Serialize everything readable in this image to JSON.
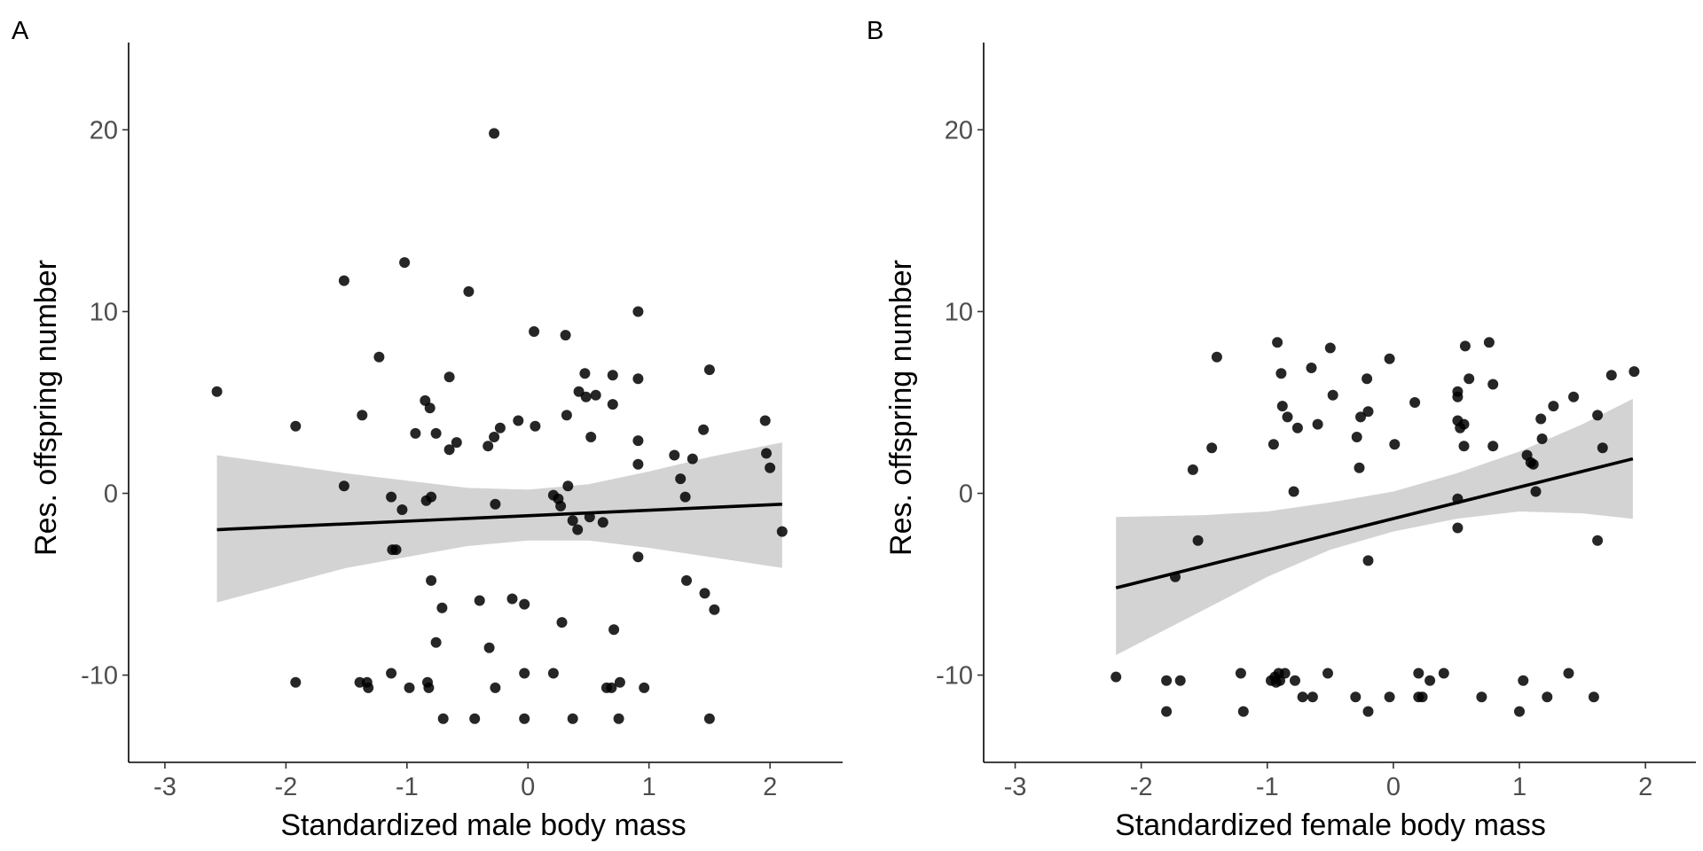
{
  "chart_data": [
    {
      "type": "scatter",
      "panel_label": "A",
      "xlabel": "Standardized male body mass",
      "ylabel": "Res. offspring number",
      "xlim": [
        -3.3,
        2.6
      ],
      "ylim": [
        -14.8,
        24.8
      ],
      "xticks": [
        -3,
        -2,
        -1,
        0,
        1,
        2
      ],
      "yticks": [
        -10,
        0,
        10,
        20
      ],
      "grid": false,
      "legend": "none",
      "point_color": "#000000",
      "band_color": "#d3d3d3",
      "fit": {
        "x0": -2.57,
        "y0": -2.0,
        "x1": 2.1,
        "y1": -0.6
      },
      "ci_band": [
        {
          "x": -2.57,
          "lower": -6.0,
          "upper": 2.1
        },
        {
          "x": -1.5,
          "lower": -4.1,
          "upper": 1.1
        },
        {
          "x": -0.5,
          "lower": -2.9,
          "upper": 0.3
        },
        {
          "x": 0.0,
          "lower": -2.6,
          "upper": 0.2
        },
        {
          "x": 0.5,
          "lower": -2.6,
          "upper": 0.5
        },
        {
          "x": 1.0,
          "lower": -3.0,
          "upper": 1.2
        },
        {
          "x": 1.5,
          "lower": -3.5,
          "upper": 2.0
        },
        {
          "x": 2.1,
          "lower": -4.1,
          "upper": 2.8
        }
      ],
      "points": [
        [
          -2.57,
          5.6
        ],
        [
          -1.92,
          3.7
        ],
        [
          -1.92,
          -10.4
        ],
        [
          -1.52,
          11.7
        ],
        [
          -1.52,
          0.4
        ],
        [
          -1.39,
          -10.4
        ],
        [
          -1.37,
          4.3
        ],
        [
          -1.33,
          -10.4
        ],
        [
          -1.32,
          -10.7
        ],
        [
          -1.23,
          7.5
        ],
        [
          -1.13,
          -0.2
        ],
        [
          -1.13,
          -9.9
        ],
        [
          -1.12,
          -3.1
        ],
        [
          -1.09,
          -3.1
        ],
        [
          -1.04,
          -0.9
        ],
        [
          -1.02,
          12.7
        ],
        [
          -0.98,
          -10.7
        ],
        [
          -0.93,
          3.3
        ],
        [
          -0.85,
          5.1
        ],
        [
          -0.84,
          -0.4
        ],
        [
          -0.83,
          -10.4
        ],
        [
          -0.82,
          -10.7
        ],
        [
          -0.81,
          4.7
        ],
        [
          -0.8,
          -0.2
        ],
        [
          -0.8,
          -4.8
        ],
        [
          -0.76,
          3.3
        ],
        [
          -0.76,
          -8.2
        ],
        [
          -0.71,
          -6.3
        ],
        [
          -0.7,
          -12.4
        ],
        [
          -0.65,
          6.4
        ],
        [
          -0.65,
          2.4
        ],
        [
          -0.59,
          2.8
        ],
        [
          -0.49,
          11.1
        ],
        [
          -0.44,
          -12.4
        ],
        [
          -0.4,
          -5.9
        ],
        [
          -0.33,
          2.6
        ],
        [
          -0.32,
          -8.5
        ],
        [
          -0.28,
          19.8
        ],
        [
          -0.28,
          3.1
        ],
        [
          -0.27,
          -0.6
        ],
        [
          -0.27,
          -10.7
        ],
        [
          -0.23,
          3.6
        ],
        [
          -0.13,
          -5.8
        ],
        [
          -0.08,
          4.0
        ],
        [
          -0.03,
          -6.1
        ],
        [
          -0.03,
          -9.9
        ],
        [
          -0.03,
          -12.4
        ],
        [
          0.05,
          8.9
        ],
        [
          0.06,
          3.7
        ],
        [
          0.21,
          -0.1
        ],
        [
          0.21,
          -9.9
        ],
        [
          0.25,
          -0.3
        ],
        [
          0.27,
          -0.7
        ],
        [
          0.28,
          -7.1
        ],
        [
          0.31,
          8.7
        ],
        [
          0.32,
          4.3
        ],
        [
          0.33,
          0.4
        ],
        [
          0.37,
          -1.5
        ],
        [
          0.37,
          -12.4
        ],
        [
          0.41,
          -2.0
        ],
        [
          0.42,
          5.6
        ],
        [
          0.47,
          6.6
        ],
        [
          0.48,
          5.3
        ],
        [
          0.51,
          -1.3
        ],
        [
          0.52,
          3.1
        ],
        [
          0.56,
          5.4
        ],
        [
          0.62,
          -1.6
        ],
        [
          0.65,
          -10.7
        ],
        [
          0.69,
          -10.7
        ],
        [
          0.7,
          6.5
        ],
        [
          0.7,
          4.9
        ],
        [
          0.71,
          -7.5
        ],
        [
          0.75,
          -12.4
        ],
        [
          0.76,
          -10.4
        ],
        [
          0.91,
          10.0
        ],
        [
          0.91,
          6.3
        ],
        [
          0.91,
          2.9
        ],
        [
          0.91,
          1.6
        ],
        [
          0.91,
          -3.5
        ],
        [
          0.96,
          -10.7
        ],
        [
          1.21,
          2.1
        ],
        [
          1.26,
          0.8
        ],
        [
          1.3,
          -0.2
        ],
        [
          1.31,
          -4.8
        ],
        [
          1.36,
          1.9
        ],
        [
          1.45,
          3.5
        ],
        [
          1.46,
          -5.5
        ],
        [
          1.5,
          6.8
        ],
        [
          1.5,
          -12.4
        ],
        [
          1.54,
          -6.4
        ],
        [
          1.96,
          4.0
        ],
        [
          1.97,
          2.2
        ],
        [
          2.0,
          1.4
        ],
        [
          2.1,
          -2.1
        ]
      ]
    },
    {
      "type": "scatter",
      "panel_label": "B",
      "xlabel": "Standardized female body mass",
      "ylabel": "Res. offspring number",
      "xlim": [
        -3.25,
        2.4
      ],
      "ylim": [
        -14.8,
        24.8
      ],
      "xticks": [
        -3,
        -2,
        -1,
        0,
        1,
        2
      ],
      "yticks": [
        -10,
        0,
        10,
        20
      ],
      "grid": false,
      "legend": "none",
      "point_color": "#000000",
      "band_color": "#d3d3d3",
      "fit": {
        "x0": -2.2,
        "y0": -5.2,
        "x1": 1.9,
        "y1": 1.9
      },
      "ci_band": [
        {
          "x": -2.2,
          "lower": -8.9,
          "upper": -1.3
        },
        {
          "x": -1.5,
          "lower": -6.4,
          "upper": -1.2
        },
        {
          "x": -1.0,
          "lower": -4.6,
          "upper": -1.0
        },
        {
          "x": -0.5,
          "lower": -3.1,
          "upper": -0.5
        },
        {
          "x": 0.0,
          "lower": -2.1,
          "upper": 0.1
        },
        {
          "x": 0.5,
          "lower": -1.4,
          "upper": 1.1
        },
        {
          "x": 1.0,
          "lower": -1.0,
          "upper": 2.3
        },
        {
          "x": 1.5,
          "lower": -1.1,
          "upper": 3.8
        },
        {
          "x": 1.9,
          "lower": -1.4,
          "upper": 5.2
        }
      ],
      "points": [
        [
          -2.2,
          -10.1
        ],
        [
          -1.8,
          -12.0
        ],
        [
          -1.8,
          -10.3
        ],
        [
          -1.73,
          -4.6
        ],
        [
          -1.69,
          -10.3
        ],
        [
          -1.59,
          1.3
        ],
        [
          -1.55,
          -2.6
        ],
        [
          -1.44,
          2.5
        ],
        [
          -1.4,
          7.5
        ],
        [
          -1.21,
          -9.9
        ],
        [
          -1.19,
          -12.0
        ],
        [
          -0.97,
          -10.3
        ],
        [
          -0.95,
          2.7
        ],
        [
          -0.94,
          -10.1
        ],
        [
          -0.93,
          -10.4
        ],
        [
          -0.92,
          8.3
        ],
        [
          -0.91,
          -9.9
        ],
        [
          -0.9,
          -10.3
        ],
        [
          -0.89,
          6.6
        ],
        [
          -0.88,
          4.8
        ],
        [
          -0.86,
          -9.9
        ],
        [
          -0.84,
          4.2
        ],
        [
          -0.79,
          0.1
        ],
        [
          -0.78,
          -10.3
        ],
        [
          -0.76,
          3.6
        ],
        [
          -0.72,
          -11.2
        ],
        [
          -0.65,
          6.9
        ],
        [
          -0.64,
          -11.2
        ],
        [
          -0.6,
          3.8
        ],
        [
          -0.52,
          -9.9
        ],
        [
          -0.5,
          8.0
        ],
        [
          -0.48,
          5.4
        ],
        [
          -0.3,
          -11.2
        ],
        [
          -0.29,
          3.1
        ],
        [
          -0.27,
          1.4
        ],
        [
          -0.26,
          4.2
        ],
        [
          -0.21,
          6.3
        ],
        [
          -0.2,
          4.5
        ],
        [
          -0.2,
          -3.7
        ],
        [
          -0.2,
          -12.0
        ],
        [
          -0.03,
          7.4
        ],
        [
          -0.03,
          -11.2
        ],
        [
          0.01,
          2.7
        ],
        [
          0.17,
          5.0
        ],
        [
          0.2,
          -9.9
        ],
        [
          0.2,
          -11.2
        ],
        [
          0.23,
          -11.2
        ],
        [
          0.29,
          -10.3
        ],
        [
          0.4,
          -9.9
        ],
        [
          0.51,
          5.6
        ],
        [
          0.51,
          5.3
        ],
        [
          0.51,
          4.0
        ],
        [
          0.51,
          -0.3
        ],
        [
          0.51,
          -1.9
        ],
        [
          0.53,
          3.6
        ],
        [
          0.56,
          3.8
        ],
        [
          0.56,
          2.6
        ],
        [
          0.57,
          8.1
        ],
        [
          0.6,
          6.3
        ],
        [
          0.7,
          -11.2
        ],
        [
          0.76,
          8.3
        ],
        [
          0.79,
          6.0
        ],
        [
          0.79,
          2.6
        ],
        [
          1.0,
          -12.0
        ],
        [
          1.03,
          -10.3
        ],
        [
          1.06,
          2.1
        ],
        [
          1.09,
          1.7
        ],
        [
          1.11,
          1.6
        ],
        [
          1.13,
          0.1
        ],
        [
          1.17,
          4.1
        ],
        [
          1.18,
          3.0
        ],
        [
          1.22,
          -11.2
        ],
        [
          1.27,
          4.8
        ],
        [
          1.39,
          -9.9
        ],
        [
          1.43,
          5.3
        ],
        [
          1.59,
          -11.2
        ],
        [
          1.62,
          -2.6
        ],
        [
          1.62,
          4.3
        ],
        [
          1.66,
          2.5
        ],
        [
          1.73,
          6.5
        ],
        [
          1.91,
          6.7
        ]
      ]
    }
  ]
}
